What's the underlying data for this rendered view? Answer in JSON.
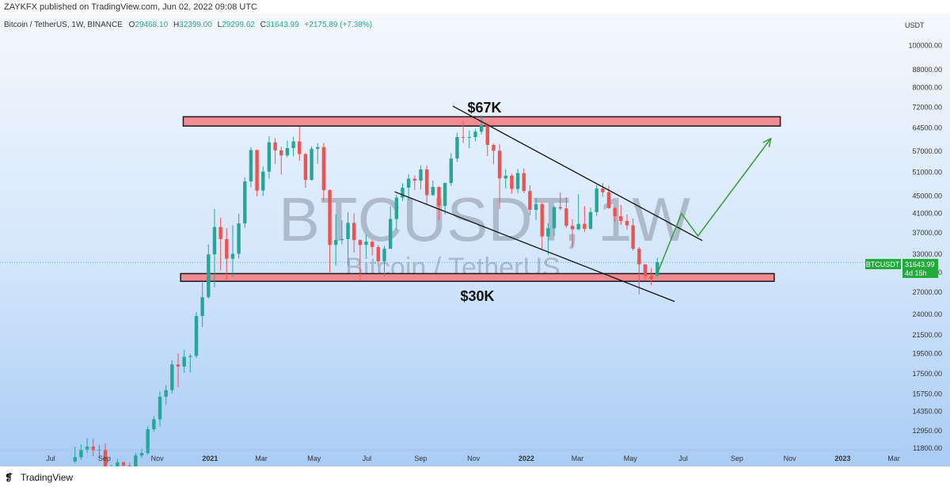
{
  "header": {
    "published": "ZAYKFX published on TradingView.com, Jun 02, 2022 09:08 UTC"
  },
  "legend": {
    "symbol": "Bitcoin / TetherUS, 1W, BINANCE",
    "open_label": "O",
    "open": "29468.10",
    "high_label": "H",
    "high": "32399.00",
    "low_label": "L",
    "low": "29299.62",
    "close_label": "C",
    "close": "31643.99",
    "change": "+2175.89 (+7.38%)"
  },
  "watermark": {
    "ticker": "BTCUSDT, 1W",
    "name": "Bitcoin / TetherUS"
  },
  "price_badge": {
    "ticker": "BTCUSDT",
    "price": "31643.99",
    "countdown": "4d 15h"
  },
  "annotations": {
    "top_zone": "$67K",
    "bottom_zone": "$30K"
  },
  "footer": {
    "brand": "TradingView",
    "logo_glyph": "❡"
  },
  "colors": {
    "up": "#26a69a",
    "down": "#ef5350",
    "zone_fill": "#f08b93",
    "forecast": "#2e9e2e",
    "badge": "#22ab3b"
  },
  "chart_data": {
    "type": "candlestick",
    "interval": "1W",
    "y_scale": "log",
    "y_unit": "USDT",
    "y_ticks": [
      11800,
      12950,
      14350,
      15750,
      17500,
      19500,
      21500,
      24000,
      27000,
      30000,
      33000,
      37000,
      41000,
      45000,
      51000,
      57000,
      64500,
      72000,
      80000,
      88000,
      100000
    ],
    "ylim": [
      11700,
      118000
    ],
    "x_ticks": [
      {
        "label": "Jul",
        "date": "2020-07-01"
      },
      {
        "label": "Sep",
        "date": "2020-09-01"
      },
      {
        "label": "Nov",
        "date": "2020-11-01"
      },
      {
        "label": "2021",
        "date": "2021-01-01"
      },
      {
        "label": "Mar",
        "date": "2021-03-01"
      },
      {
        "label": "May",
        "date": "2021-05-01"
      },
      {
        "label": "Jul",
        "date": "2021-07-01"
      },
      {
        "label": "Sep",
        "date": "2021-09-01"
      },
      {
        "label": "Nov",
        "date": "2021-11-01"
      },
      {
        "label": "2022",
        "date": "2022-01-01"
      },
      {
        "label": "Mar",
        "date": "2022-03-01"
      },
      {
        "label": "May",
        "date": "2022-05-01"
      },
      {
        "label": "Jul",
        "date": "2022-07-01"
      },
      {
        "label": "Sep",
        "date": "2022-09-01"
      },
      {
        "label": "Nov",
        "date": "2022-11-01"
      },
      {
        "label": "2023",
        "date": "2023-01-01"
      },
      {
        "label": "Mar",
        "date": "2023-03-01"
      }
    ],
    "candles": [
      {
        "date": "2020-07-27",
        "open": 11000,
        "high": 11900,
        "low": 10900,
        "close": 11250
      },
      {
        "date": "2020-08-03",
        "open": 11250,
        "high": 12050,
        "low": 11100,
        "close": 11700
      },
      {
        "date": "2020-08-10",
        "open": 11700,
        "high": 12450,
        "low": 11500,
        "close": 11900
      },
      {
        "date": "2020-08-17",
        "open": 11900,
        "high": 12400,
        "low": 11300,
        "close": 11650
      },
      {
        "date": "2020-08-24",
        "open": 11650,
        "high": 12000,
        "low": 11150,
        "close": 11700
      },
      {
        "date": "2020-08-31",
        "open": 11700,
        "high": 12100,
        "low": 9900,
        "close": 10250
      },
      {
        "date": "2020-09-07",
        "open": 10250,
        "high": 10800,
        "low": 9850,
        "close": 10650
      },
      {
        "date": "2020-09-14",
        "open": 10650,
        "high": 11150,
        "low": 10500,
        "close": 10950
      },
      {
        "date": "2020-09-21",
        "open": 10950,
        "high": 11000,
        "low": 10150,
        "close": 10750
      },
      {
        "date": "2020-09-28",
        "open": 10750,
        "high": 10950,
        "low": 10400,
        "close": 10650
      },
      {
        "date": "2020-10-05",
        "open": 10650,
        "high": 11500,
        "low": 10550,
        "close": 11350
      },
      {
        "date": "2020-10-12",
        "open": 11350,
        "high": 11750,
        "low": 11200,
        "close": 11500
      },
      {
        "date": "2020-10-19",
        "open": 11500,
        "high": 13250,
        "low": 11400,
        "close": 13050
      },
      {
        "date": "2020-10-26",
        "open": 13050,
        "high": 14000,
        "low": 12900,
        "close": 13750
      },
      {
        "date": "2020-11-02",
        "open": 13750,
        "high": 15950,
        "low": 13250,
        "close": 15500
      },
      {
        "date": "2020-11-09",
        "open": 15500,
        "high": 16500,
        "low": 14850,
        "close": 16050
      },
      {
        "date": "2020-11-16",
        "open": 16050,
        "high": 18800,
        "low": 15800,
        "close": 18400
      },
      {
        "date": "2020-11-23",
        "open": 18400,
        "high": 19500,
        "low": 16300,
        "close": 18200
      },
      {
        "date": "2020-11-30",
        "open": 18200,
        "high": 19900,
        "low": 17600,
        "close": 19150
      },
      {
        "date": "2020-12-07",
        "open": 19150,
        "high": 19450,
        "low": 17650,
        "close": 19250
      },
      {
        "date": "2020-12-14",
        "open": 19250,
        "high": 24300,
        "low": 19050,
        "close": 23800
      },
      {
        "date": "2020-12-21",
        "open": 23800,
        "high": 28400,
        "low": 22450,
        "close": 26300
      },
      {
        "date": "2020-12-28",
        "open": 26300,
        "high": 34800,
        "low": 26100,
        "close": 33000
      },
      {
        "date": "2021-01-04",
        "open": 33000,
        "high": 42000,
        "low": 27700,
        "close": 38150
      },
      {
        "date": "2021-01-11",
        "open": 38150,
        "high": 40100,
        "low": 30300,
        "close": 35800
      },
      {
        "date": "2021-01-18",
        "open": 35800,
        "high": 37900,
        "low": 28800,
        "close": 32250
      },
      {
        "date": "2021-01-25",
        "open": 32250,
        "high": 38500,
        "low": 29300,
        "close": 33100
      },
      {
        "date": "2021-02-01",
        "open": 33100,
        "high": 40950,
        "low": 32300,
        "close": 38900
      },
      {
        "date": "2021-02-08",
        "open": 38900,
        "high": 49700,
        "low": 38000,
        "close": 48600
      },
      {
        "date": "2021-02-15",
        "open": 48600,
        "high": 58300,
        "low": 47100,
        "close": 57400
      },
      {
        "date": "2021-02-22",
        "open": 57400,
        "high": 57600,
        "low": 44900,
        "close": 46300
      },
      {
        "date": "2021-03-01",
        "open": 46300,
        "high": 52600,
        "low": 45000,
        "close": 51200
      },
      {
        "date": "2021-03-08",
        "open": 51200,
        "high": 61800,
        "low": 49300,
        "close": 59800
      },
      {
        "date": "2021-03-15",
        "open": 59800,
        "high": 61200,
        "low": 53300,
        "close": 57300
      },
      {
        "date": "2021-03-22",
        "open": 57300,
        "high": 58400,
        "low": 50400,
        "close": 55800
      },
      {
        "date": "2021-03-29",
        "open": 55800,
        "high": 60300,
        "low": 55200,
        "close": 58000
      },
      {
        "date": "2021-04-05",
        "open": 58000,
        "high": 61600,
        "low": 55500,
        "close": 60100
      },
      {
        "date": "2021-04-12",
        "open": 60100,
        "high": 64900,
        "low": 54200,
        "close": 56200
      },
      {
        "date": "2021-04-19",
        "open": 56200,
        "high": 56500,
        "low": 47000,
        "close": 49000
      },
      {
        "date": "2021-04-26",
        "open": 49000,
        "high": 58500,
        "low": 48800,
        "close": 57800
      },
      {
        "date": "2021-05-03",
        "open": 57800,
        "high": 59500,
        "low": 53400,
        "close": 58300
      },
      {
        "date": "2021-05-10",
        "open": 58300,
        "high": 59600,
        "low": 43800,
        "close": 46400
      },
      {
        "date": "2021-05-17",
        "open": 46400,
        "high": 46600,
        "low": 30000,
        "close": 34700
      },
      {
        "date": "2021-05-24",
        "open": 34700,
        "high": 40800,
        "low": 31100,
        "close": 35600
      },
      {
        "date": "2021-05-31",
        "open": 35600,
        "high": 39500,
        "low": 34800,
        "close": 35800
      },
      {
        "date": "2021-06-07",
        "open": 35800,
        "high": 41300,
        "low": 31000,
        "close": 39000
      },
      {
        "date": "2021-06-14",
        "open": 39000,
        "high": 41000,
        "low": 33300,
        "close": 35600
      },
      {
        "date": "2021-06-21",
        "open": 35600,
        "high": 35700,
        "low": 28800,
        "close": 34700
      },
      {
        "date": "2021-06-28",
        "open": 34700,
        "high": 36600,
        "low": 32700,
        "close": 35300
      },
      {
        "date": "2021-07-05",
        "open": 35300,
        "high": 35600,
        "low": 32800,
        "close": 34300
      },
      {
        "date": "2021-07-12",
        "open": 34300,
        "high": 34700,
        "low": 31000,
        "close": 31800
      },
      {
        "date": "2021-07-19",
        "open": 31800,
        "high": 34500,
        "low": 29300,
        "close": 34000
      },
      {
        "date": "2021-07-26",
        "open": 34000,
        "high": 42600,
        "low": 34000,
        "close": 39800
      },
      {
        "date": "2021-08-02",
        "open": 39800,
        "high": 45300,
        "low": 37600,
        "close": 44600
      },
      {
        "date": "2021-08-09",
        "open": 44600,
        "high": 48100,
        "low": 43800,
        "close": 47000
      },
      {
        "date": "2021-08-16",
        "open": 47000,
        "high": 50500,
        "low": 44000,
        "close": 49300
      },
      {
        "date": "2021-08-23",
        "open": 49300,
        "high": 50200,
        "low": 46400,
        "close": 48800
      },
      {
        "date": "2021-08-30",
        "open": 48800,
        "high": 52900,
        "low": 46600,
        "close": 51800
      },
      {
        "date": "2021-09-06",
        "open": 51800,
        "high": 52900,
        "low": 43000,
        "close": 45200
      },
      {
        "date": "2021-09-13",
        "open": 45200,
        "high": 48800,
        "low": 45000,
        "close": 47200
      },
      {
        "date": "2021-09-20",
        "open": 47200,
        "high": 47300,
        "low": 39600,
        "close": 42700
      },
      {
        "date": "2021-09-27",
        "open": 42700,
        "high": 48300,
        "low": 40800,
        "close": 48200
      },
      {
        "date": "2021-10-04",
        "open": 48200,
        "high": 56500,
        "low": 47500,
        "close": 54900
      },
      {
        "date": "2021-10-11",
        "open": 54900,
        "high": 62900,
        "low": 53900,
        "close": 61500
      },
      {
        "date": "2021-10-18",
        "open": 61500,
        "high": 67000,
        "low": 59600,
        "close": 61300
      },
      {
        "date": "2021-10-25",
        "open": 61300,
        "high": 63700,
        "low": 58000,
        "close": 61500
      },
      {
        "date": "2021-11-01",
        "open": 61500,
        "high": 64300,
        "low": 60100,
        "close": 63300
      },
      {
        "date": "2021-11-08",
        "open": 63300,
        "high": 69000,
        "low": 62300,
        "close": 65500
      },
      {
        "date": "2021-11-15",
        "open": 65500,
        "high": 66300,
        "low": 55600,
        "close": 59000
      },
      {
        "date": "2021-11-22",
        "open": 59000,
        "high": 59400,
        "low": 53200,
        "close": 57200
      },
      {
        "date": "2021-11-29",
        "open": 57200,
        "high": 59200,
        "low": 42000,
        "close": 49400
      },
      {
        "date": "2021-12-06",
        "open": 49400,
        "high": 51900,
        "low": 46800,
        "close": 50100
      },
      {
        "date": "2021-12-13",
        "open": 50100,
        "high": 50600,
        "low": 45500,
        "close": 46700
      },
      {
        "date": "2021-12-20",
        "open": 46700,
        "high": 51900,
        "low": 45600,
        "close": 50800
      },
      {
        "date": "2021-12-27",
        "open": 50800,
        "high": 52100,
        "low": 45700,
        "close": 46200
      },
      {
        "date": "2022-01-03",
        "open": 46200,
        "high": 47600,
        "low": 40600,
        "close": 41800
      },
      {
        "date": "2022-01-10",
        "open": 41800,
        "high": 44500,
        "low": 39600,
        "close": 43100
      },
      {
        "date": "2022-01-17",
        "open": 43100,
        "high": 43500,
        "low": 34000,
        "close": 36300
      },
      {
        "date": "2022-01-24",
        "open": 36300,
        "high": 38900,
        "low": 32900,
        "close": 37900
      },
      {
        "date": "2022-01-31",
        "open": 37900,
        "high": 42600,
        "low": 36300,
        "close": 42400
      },
      {
        "date": "2022-02-07",
        "open": 42400,
        "high": 45800,
        "low": 41700,
        "close": 42100
      },
      {
        "date": "2022-02-14",
        "open": 42100,
        "high": 44700,
        "low": 38000,
        "close": 38400
      },
      {
        "date": "2022-02-21",
        "open": 38400,
        "high": 39800,
        "low": 34300,
        "close": 37700
      },
      {
        "date": "2022-02-28",
        "open": 37700,
        "high": 45400,
        "low": 37500,
        "close": 38800
      },
      {
        "date": "2022-03-07",
        "open": 38800,
        "high": 42600,
        "low": 37200,
        "close": 37800
      },
      {
        "date": "2022-03-14",
        "open": 37800,
        "high": 42300,
        "low": 37600,
        "close": 41300
      },
      {
        "date": "2022-03-21",
        "open": 41300,
        "high": 47700,
        "low": 40500,
        "close": 46800
      },
      {
        "date": "2022-03-28",
        "open": 46800,
        "high": 48200,
        "low": 44800,
        "close": 45900
      },
      {
        "date": "2022-04-04",
        "open": 45900,
        "high": 47500,
        "low": 42000,
        "close": 42200
      },
      {
        "date": "2022-04-11",
        "open": 42200,
        "high": 42400,
        "low": 39200,
        "close": 40400
      },
      {
        "date": "2022-04-18",
        "open": 40400,
        "high": 42900,
        "low": 38600,
        "close": 39400
      },
      {
        "date": "2022-04-25",
        "open": 39400,
        "high": 40800,
        "low": 37600,
        "close": 38500
      },
      {
        "date": "2022-05-02",
        "open": 38500,
        "high": 39900,
        "low": 33700,
        "close": 34000
      },
      {
        "date": "2022-05-09",
        "open": 34000,
        "high": 34300,
        "low": 26700,
        "close": 31300
      },
      {
        "date": "2022-05-16",
        "open": 31300,
        "high": 31000,
        "low": 28700,
        "close": 29400
      },
      {
        "date": "2022-05-23",
        "open": 29400,
        "high": 30700,
        "low": 28000,
        "close": 29000
      },
      {
        "date": "2022-05-30",
        "open": 29468.1,
        "high": 32399,
        "low": 29299.62,
        "close": 31643.99
      }
    ],
    "horizontal_zones": [
      {
        "label": "$67K",
        "start": "2020-12-01",
        "end": "2022-10-21",
        "top": 68500,
        "bottom": 65200
      },
      {
        "label": "$30K",
        "start": "2020-11-28",
        "end": "2022-10-14",
        "top": 29800,
        "bottom": 28600
      }
    ],
    "trendlines": [
      {
        "start": {
          "date": "2021-10-08",
          "price": 72500
        },
        "end": {
          "date": "2022-07-23",
          "price": 35500
        }
      },
      {
        "start": {
          "date": "2021-08-02",
          "price": 46000
        },
        "end": {
          "date": "2022-06-21",
          "price": 25700
        }
      }
    ],
    "forecast_path": [
      {
        "date": "2022-06-01",
        "price": 29800
      },
      {
        "date": "2022-06-29",
        "price": 41000
      },
      {
        "date": "2022-07-18",
        "price": 36400
      },
      {
        "date": "2022-10-10",
        "price": 61000
      }
    ],
    "last_price": 31643.99
  }
}
